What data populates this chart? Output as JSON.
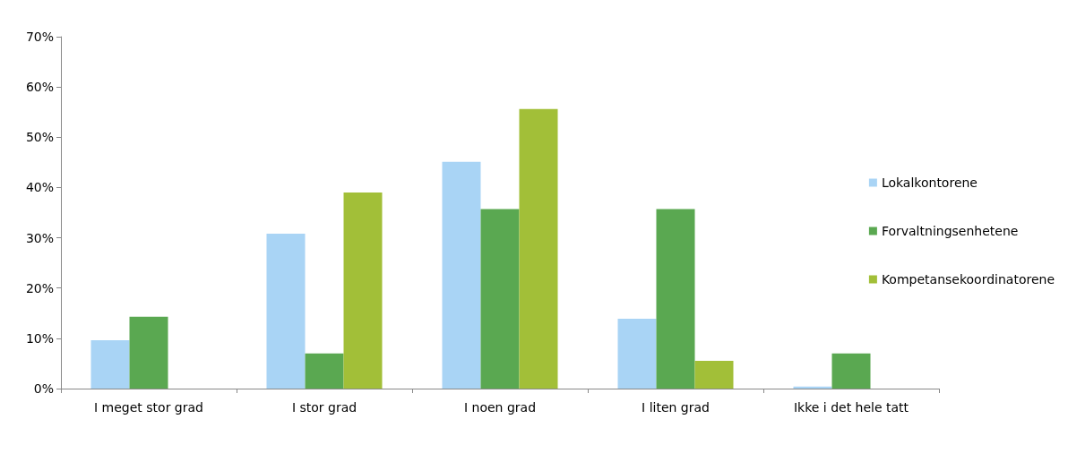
{
  "chart_data": {
    "type": "bar",
    "categories": [
      "I meget stor grad",
      "I stor grad",
      "I noen grad",
      "I liten grad",
      "Ikke i det hele tatt"
    ],
    "series": [
      {
        "name": "Lokalkontorene",
        "color": "#a9d4f5",
        "values": [
          9.6,
          30.8,
          45.1,
          13.9,
          0.4
        ]
      },
      {
        "name": "Forvaltningsenhetene",
        "color": "#5aa851",
        "values": [
          14.3,
          7.0,
          35.7,
          35.7,
          7.0
        ]
      },
      {
        "name": "Kompetansekoordinatorene",
        "color": "#a2bf38",
        "values": [
          0,
          39.0,
          55.6,
          5.5,
          0
        ]
      }
    ],
    "ylim": [
      0,
      70
    ],
    "yticks": [
      {
        "value": 0,
        "label": "0%"
      },
      {
        "value": 10,
        "label": "10%"
      },
      {
        "value": 20,
        "label": "20%"
      },
      {
        "value": 30,
        "label": "30%"
      },
      {
        "value": 40,
        "label": "40%"
      },
      {
        "value": 50,
        "label": "50%"
      },
      {
        "value": 60,
        "label": "60%"
      },
      {
        "value": 70,
        "label": "70%"
      }
    ],
    "grid": false,
    "legend": "right"
  }
}
